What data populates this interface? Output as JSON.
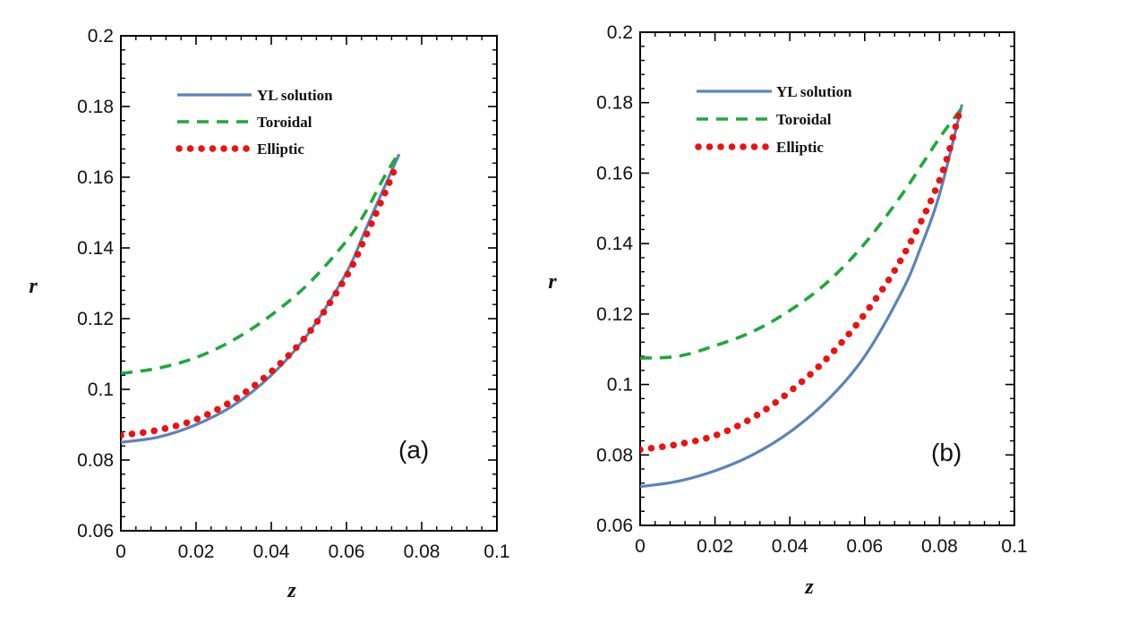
{
  "chart_data": [
    {
      "type": "line",
      "panel_label": "(a)",
      "xlabel": "z",
      "ylabel": "r",
      "xlim": [
        0,
        0.1
      ],
      "ylim": [
        0.06,
        0.2
      ],
      "x_ticks": [
        0,
        0.02,
        0.04,
        0.06,
        0.08,
        0.1
      ],
      "x_tick_labels": [
        "0",
        "0.02",
        "0.04",
        "0.06",
        "0.08",
        "0.1"
      ],
      "y_ticks": [
        0.06,
        0.08,
        0.1,
        0.12,
        0.14,
        0.16,
        0.18,
        0.2
      ],
      "y_tick_labels": [
        "0.06",
        "0.08",
        "0.1",
        "0.12",
        "0.14",
        "0.16",
        "0.18",
        "0.2"
      ],
      "legend_position": "top-left",
      "series": [
        {
          "name": "YL solution",
          "style": "solid",
          "color": "#5b84b8",
          "x": [
            0,
            0.01,
            0.02,
            0.03,
            0.04,
            0.05,
            0.06,
            0.065,
            0.07,
            0.074
          ],
          "y": [
            0.085,
            0.0865,
            0.09,
            0.0955,
            0.104,
            0.116,
            0.133,
            0.145,
            0.157,
            0.1665
          ]
        },
        {
          "name": "Toroidal",
          "style": "dashed",
          "color": "#1fa83a",
          "x": [
            0,
            0.01,
            0.02,
            0.03,
            0.04,
            0.05,
            0.06,
            0.065,
            0.07,
            0.074
          ],
          "y": [
            0.1045,
            0.106,
            0.109,
            0.114,
            0.121,
            0.13,
            0.142,
            0.15,
            0.16,
            0.167
          ]
        },
        {
          "name": "Elliptic",
          "style": "dotted",
          "color": "#ee1111",
          "x": [
            0,
            0.01,
            0.02,
            0.03,
            0.04,
            0.05,
            0.06,
            0.065,
            0.07,
            0.0735
          ],
          "y": [
            0.087,
            0.0885,
            0.0915,
            0.097,
            0.105,
            0.116,
            0.132,
            0.143,
            0.155,
            0.164
          ]
        }
      ]
    },
    {
      "type": "line",
      "panel_label": "(b)",
      "xlabel": "z",
      "ylabel": "r",
      "xlim": [
        0,
        0.1
      ],
      "ylim": [
        0.06,
        0.2
      ],
      "x_ticks": [
        0,
        0.02,
        0.04,
        0.06,
        0.08,
        0.1
      ],
      "x_tick_labels": [
        "0",
        "0.02",
        "0.04",
        "0.06",
        "0.08",
        "0.1"
      ],
      "y_ticks": [
        0.06,
        0.08,
        0.1,
        0.12,
        0.14,
        0.16,
        0.18,
        0.2
      ],
      "y_tick_labels": [
        "0.06",
        "0.08",
        "0.1",
        "0.12",
        "0.14",
        "0.16",
        "0.18",
        "0.2"
      ],
      "legend_position": "top-left",
      "series": [
        {
          "name": "YL solution",
          "style": "solid",
          "color": "#5b84b8",
          "x": [
            0,
            0.01,
            0.02,
            0.03,
            0.04,
            0.05,
            0.06,
            0.07,
            0.075,
            0.08,
            0.086
          ],
          "y": [
            0.071,
            0.0725,
            0.0755,
            0.08,
            0.0865,
            0.0955,
            0.108,
            0.1265,
            0.139,
            0.154,
            0.1795
          ]
        },
        {
          "name": "Toroidal",
          "style": "dashed",
          "color": "#1fa83a",
          "x": [
            0,
            0.01,
            0.02,
            0.03,
            0.04,
            0.05,
            0.06,
            0.07,
            0.08,
            0.086
          ],
          "y": [
            0.1075,
            0.108,
            0.111,
            0.115,
            0.121,
            0.129,
            0.14,
            0.154,
            0.17,
            0.1785
          ]
        },
        {
          "name": "Elliptic",
          "style": "dotted",
          "color": "#ee1111",
          "x": [
            0,
            0.01,
            0.02,
            0.03,
            0.04,
            0.05,
            0.06,
            0.07,
            0.08,
            0.0855
          ],
          "y": [
            0.0815,
            0.083,
            0.0855,
            0.0905,
            0.098,
            0.1075,
            0.12,
            0.136,
            0.158,
            0.178
          ]
        }
      ]
    }
  ]
}
